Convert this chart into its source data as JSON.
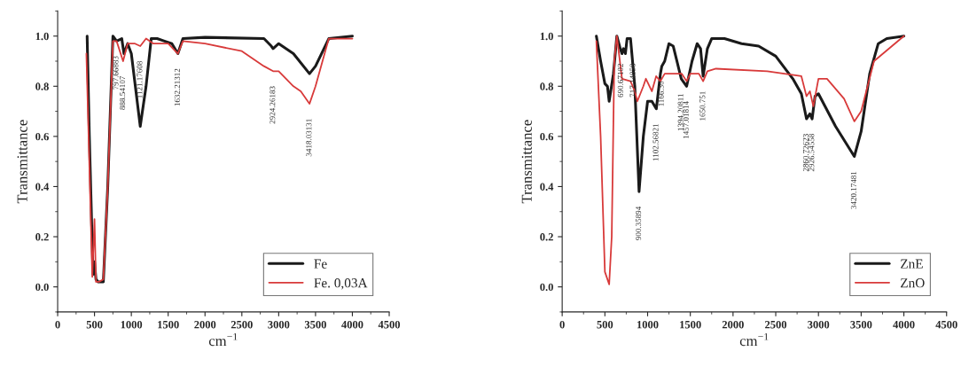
{
  "chart_data": [
    {
      "type": "line",
      "xlabel": "cm$^{−1}$",
      "ylabel": "Transmittance",
      "xlim": [
        0,
        4500
      ],
      "ylim": [
        -0.1,
        1.1
      ],
      "xticks": [
        0,
        500,
        1000,
        1500,
        2000,
        2500,
        3000,
        3500,
        4000,
        4500
      ],
      "yticks": [
        {
          "value": 0,
          "label": "0.0"
        },
        {
          "value": 0.2,
          "label": "0.2"
        },
        {
          "value": 0.4,
          "label": "0.4"
        },
        {
          "value": 0.6,
          "label": "0.6"
        },
        {
          "value": 0.8,
          "label": "0.8"
        },
        {
          "value": 1,
          "label": "1.0"
        }
      ],
      "legend": "bottom right",
      "grid": false,
      "series": [
        {
          "name": "Fe",
          "color": "#1a1a1a",
          "x": [
            400,
            430,
            480,
            500,
            520,
            550,
            620,
            680,
            750,
            800,
            870,
            900,
            950,
            1000,
            1121,
            1200,
            1270,
            1350,
            1450,
            1550,
            1632,
            1700,
            2000,
            2800,
            2900,
            2924,
            3000,
            3200,
            3418,
            3500,
            3680,
            4000
          ],
          "values": [
            1.0,
            0.6,
            0.05,
            0.1,
            0.03,
            0.02,
            0.02,
            0.4,
            1.0,
            0.98,
            0.99,
            0.93,
            0.97,
            0.93,
            0.64,
            0.8,
            0.99,
            0.99,
            0.98,
            0.97,
            0.93,
            0.99,
            0.995,
            0.99,
            0.96,
            0.95,
            0.97,
            0.93,
            0.85,
            0.88,
            0.99,
            1.0
          ]
        },
        {
          "name": "Fe. 0,03A",
          "color": "#d83a3a",
          "x": [
            390,
            420,
            470,
            500,
            520,
            560,
            620,
            680,
            750,
            800,
            888,
            950,
            1050,
            1121,
            1200,
            1300,
            1500,
            1632,
            1700,
            2000,
            2500,
            2800,
            2924,
            3000,
            3200,
            3300,
            3418,
            3500,
            3680,
            4000
          ],
          "values": [
            0.93,
            0.6,
            0.04,
            0.27,
            0.02,
            0.02,
            0.03,
            0.4,
            0.98,
            0.98,
            0.9,
            0.97,
            0.97,
            0.96,
            0.99,
            0.97,
            0.97,
            0.93,
            0.98,
            0.97,
            0.94,
            0.88,
            0.86,
            0.86,
            0.8,
            0.78,
            0.73,
            0.8,
            0.99,
            0.99
          ]
        }
      ],
      "annotations": [
        {
          "text": "797.66883",
          "x": 797,
          "y": 0.98
        },
        {
          "text": "888.54107",
          "x": 888,
          "y": 0.9
        },
        {
          "text": "1121.17608",
          "x": 1121,
          "y": 0.96
        },
        {
          "text": "1632.21312",
          "x": 1632,
          "y": 0.93
        },
        {
          "text": "2924.26183",
          "x": 2924,
          "y": 0.86
        },
        {
          "text": "3418.03131",
          "x": 3418,
          "y": 0.73
        }
      ]
    },
    {
      "type": "line",
      "xlabel": "cm$^{−1}$",
      "ylabel": "Transmittance",
      "xlim": [
        0,
        4500
      ],
      "ylim": [
        -0.1,
        1.1
      ],
      "xticks": [
        0,
        500,
        1000,
        1500,
        2000,
        2500,
        3000,
        3500,
        4000,
        4500
      ],
      "yticks": [
        {
          "value": 0,
          "label": "0.0"
        },
        {
          "value": 0.2,
          "label": "0.2"
        },
        {
          "value": 0.4,
          "label": "0.4"
        },
        {
          "value": 0.6,
          "label": "0.6"
        },
        {
          "value": 0.8,
          "label": "0.8"
        },
        {
          "value": 1,
          "label": "1.0"
        }
      ],
      "legend": "bottom right",
      "grid": false,
      "series": [
        {
          "name": "ZnE",
          "color": "#1a1a1a",
          "x": [
            400,
            450,
            500,
            530,
            550,
            600,
            640,
            680,
            700,
            717,
            740,
            760,
            800,
            850,
            900,
            950,
            1000,
            1050,
            1102,
            1150,
            1166,
            1200,
            1250,
            1300,
            1394,
            1457,
            1520,
            1580,
            1620,
            1650,
            1700,
            1750,
            1900,
            2100,
            2300,
            2500,
            2700,
            2800,
            2860,
            2900,
            2926,
            2960,
            3000,
            3200,
            3420,
            3500,
            3600,
            3700,
            3800,
            4000
          ],
          "values": [
            1.0,
            0.9,
            0.81,
            0.8,
            0.74,
            0.85,
            1.0,
            0.95,
            0.93,
            0.95,
            0.93,
            0.99,
            0.99,
            0.8,
            0.38,
            0.6,
            0.74,
            0.74,
            0.71,
            0.85,
            0.88,
            0.9,
            0.97,
            0.96,
            0.83,
            0.8,
            0.9,
            0.97,
            0.95,
            0.84,
            0.95,
            0.99,
            0.99,
            0.97,
            0.96,
            0.92,
            0.83,
            0.77,
            0.67,
            0.69,
            0.67,
            0.76,
            0.77,
            0.64,
            0.52,
            0.62,
            0.85,
            0.97,
            0.99,
            1.0
          ]
        },
        {
          "name": "ZnO",
          "color": "#d83a3a",
          "x": [
            400,
            450,
            500,
            550,
            580,
            610,
            640,
            700,
            800,
            850,
            880,
            950,
            980,
            1050,
            1100,
            1150,
            1200,
            1400,
            1457,
            1500,
            1600,
            1650,
            1700,
            1800,
            2400,
            2800,
            2860,
            2900,
            2940,
            3000,
            3100,
            3300,
            3420,
            3500,
            3650,
            4000
          ],
          "values": [
            0.98,
            0.6,
            0.06,
            0.01,
            0.2,
            0.9,
            1.0,
            0.83,
            0.82,
            0.78,
            0.74,
            0.8,
            0.83,
            0.78,
            0.84,
            0.82,
            0.85,
            0.85,
            0.82,
            0.85,
            0.85,
            0.82,
            0.86,
            0.87,
            0.86,
            0.84,
            0.76,
            0.78,
            0.72,
            0.83,
            0.83,
            0.75,
            0.66,
            0.7,
            0.9,
            1.0
          ]
        }
      ],
      "annotations": [
        {
          "text": "690.67102",
          "x": 690,
          "y": 0.95
        },
        {
          "text": "717.14858",
          "x": 717,
          "y": 0.95
        },
        {
          "text": "900.35894",
          "x": 900,
          "y": 0.38
        },
        {
          "text": "1102.56821",
          "x": 1102,
          "y": 0.71
        },
        {
          "text": "1166.30",
          "x": 1166,
          "y": 0.88
        },
        {
          "text": "1394.20811",
          "x": 1394,
          "y": 0.83
        },
        {
          "text": "1457.01814",
          "x": 1457,
          "y": 0.8
        },
        {
          "text": "1650.751",
          "x": 1650,
          "y": 0.84
        },
        {
          "text": "2860.72623",
          "x": 2860,
          "y": 0.67
        },
        {
          "text": "2926.54558",
          "x": 2926,
          "y": 0.67
        },
        {
          "text": "3420.17481",
          "x": 3420,
          "y": 0.52
        }
      ]
    }
  ]
}
